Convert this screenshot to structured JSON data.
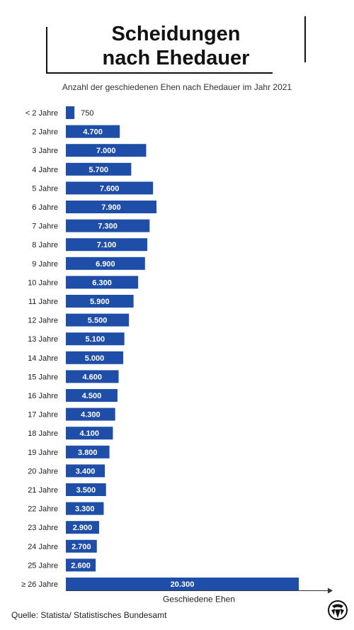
{
  "header": {
    "title_line1": "Scheidungen",
    "title_line2": "nach Ehedauer",
    "subtitle": "Anzahl der geschiedenen Ehen nach Ehedauer im Jahr 2021"
  },
  "footer": {
    "source": "Quelle: Statista/ Statistisches Bundesamt"
  },
  "logo": {
    "icon": "emblem-icon"
  },
  "colors": {
    "bar": "#1f4ea8",
    "label_inside": "#ffffff",
    "label_outside": "#222222"
  },
  "chart_data": {
    "type": "bar",
    "orientation": "horizontal",
    "categories": [
      "< 2 Jahre",
      "2 Jahre",
      "3 Jahre",
      "4 Jahre",
      "5 Jahre",
      "6 Jahre",
      "7 Jahre",
      "8 Jahre",
      "9 Jahre",
      "10 Jahre",
      "11 Jahre",
      "12 Jahre",
      "13 Jahre",
      "14 Jahre",
      "15 Jahre",
      "16 Jahre",
      "17 Jahre",
      "18 Jahre",
      "19 Jahre",
      "20 Jahre",
      "21 Jahre",
      "22 Jahre",
      "23 Jahre",
      "24 Jahre",
      "25 Jahre",
      "≥ 26 Jahre"
    ],
    "values": [
      750,
      4700,
      7000,
      5700,
      7600,
      7900,
      7300,
      7100,
      6900,
      6300,
      5900,
      5500,
      5100,
      5000,
      4600,
      4500,
      4300,
      4100,
      3800,
      3400,
      3500,
      3300,
      2900,
      2700,
      2600,
      20300
    ],
    "value_labels": [
      "750",
      "4.700",
      "7.000",
      "5.700",
      "7.600",
      "7.900",
      "7.300",
      "7.100",
      "6.900",
      "6.300",
      "5.900",
      "5.500",
      "5.100",
      "5.000",
      "4.600",
      "4.500",
      "4.300",
      "4.100",
      "3.800",
      "3.400",
      "3.500",
      "3.300",
      "2.900",
      "2.700",
      "2.600",
      "20.300"
    ],
    "xlabel": "Geschiedene Ehen",
    "ylabel": "",
    "xlim": [
      0,
      20300
    ],
    "grid": false,
    "legend": "none"
  }
}
